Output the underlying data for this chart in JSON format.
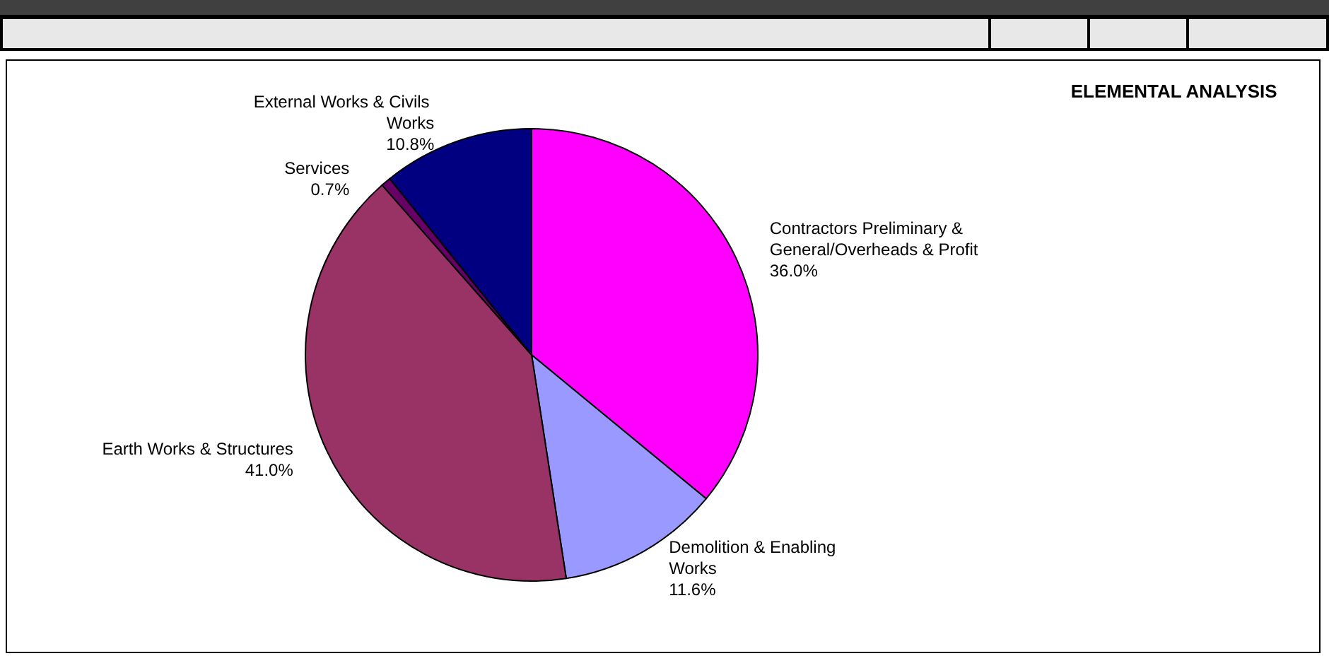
{
  "chart_data": {
    "type": "pie",
    "title": "ELEMENTAL ANALYSIS",
    "categories": [
      "Contractors Preliminary & General/Overheads & Profit",
      "Demolition & Enabling Works",
      "Earth Works & Structures",
      "Services",
      "External Works & Civils Works"
    ],
    "values": [
      36.0,
      11.6,
      41.0,
      0.7,
      10.8
    ],
    "value_labels": [
      "36.0%",
      "11.6%",
      "41.0%",
      "0.7%",
      "10.8%"
    ],
    "colors": [
      "#ff00ff",
      "#9999ff",
      "#993366",
      "#660066",
      "#000080"
    ],
    "legend": false
  }
}
